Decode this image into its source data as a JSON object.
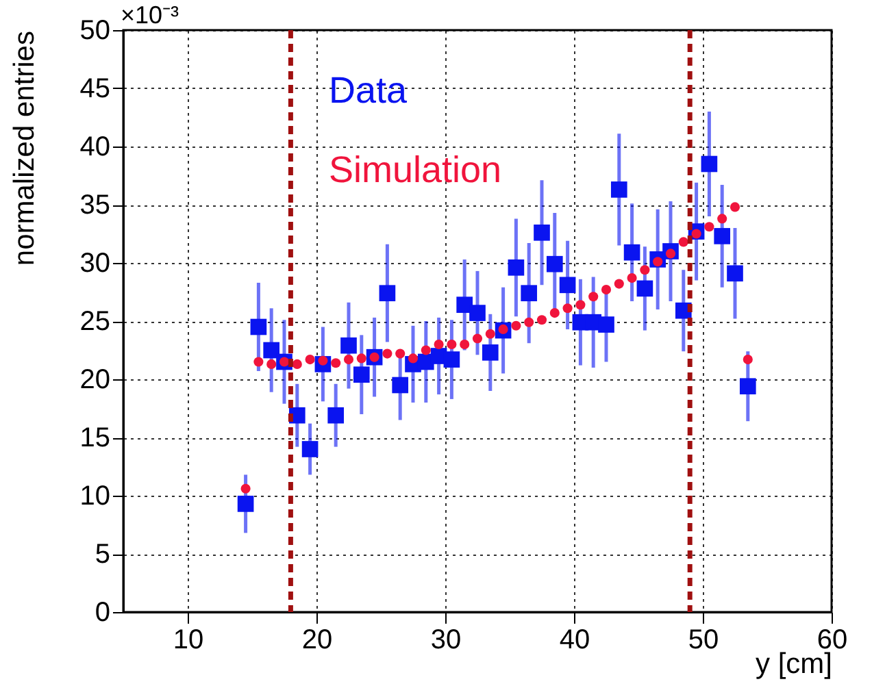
{
  "chart_data": {
    "type": "scatter",
    "xlabel": "y [cm]",
    "ylabel": "normalized entries",
    "annotations": [
      "×10⁻³"
    ],
    "xlim": [
      5,
      60
    ],
    "xticks": [
      10,
      20,
      30,
      40,
      50,
      60
    ],
    "ylim": [
      0,
      50
    ],
    "yticks": [
      0,
      5,
      10,
      15,
      20,
      25,
      30,
      35,
      40,
      45,
      50
    ],
    "grid": true,
    "legend": "top left",
    "x": [
      14.5,
      15.5,
      16.5,
      17.5,
      18.5,
      19.5,
      20.5,
      21.5,
      22.5,
      23.5,
      24.5,
      25.5,
      26.5,
      27.5,
      28.5,
      29.5,
      30.5,
      31.5,
      32.5,
      33.5,
      34.5,
      35.5,
      36.5,
      37.5,
      38.5,
      39.5,
      40.5,
      41.5,
      42.5,
      43.5,
      44.5,
      45.5,
      46.5,
      47.5,
      48.5,
      49.5,
      50.5,
      51.5,
      52.5,
      53.5
    ],
    "series": [
      {
        "name": "Simulation",
        "color": "#f0143c",
        "marker": "circle",
        "values": [
          10.6,
          21.5,
          21.3,
          21.5,
          21.3,
          21.7,
          21.6,
          21.4,
          21.7,
          21.8,
          21.9,
          22.2,
          22.2,
          21.8,
          22.5,
          23.0,
          23.0,
          23.0,
          23.5,
          23.9,
          24.3,
          24.6,
          24.9,
          25.1,
          25.7,
          26.1,
          26.4,
          27.1,
          27.7,
          28.2,
          28.7,
          29.4,
          30.1,
          30.8,
          31.8,
          32.5,
          33.1,
          33.8,
          34.8,
          21.7
        ]
      },
      {
        "name": "Data",
        "color": "#0a14f0",
        "marker": "square",
        "values": [
          9.3,
          24.5,
          22.5,
          21.5,
          16.9,
          14.0,
          21.3,
          16.9,
          22.9,
          20.4,
          21.9,
          27.4,
          19.5,
          21.3,
          21.5,
          22.0,
          21.7,
          26.4,
          25.7,
          22.3,
          24.2,
          29.6,
          27.4,
          32.6,
          29.9,
          28.1,
          24.9,
          24.9,
          24.7,
          36.3,
          30.9,
          27.8,
          30.3,
          31.0,
          25.9,
          32.7,
          38.5,
          32.3,
          29.1,
          19.4
        ],
        "errors": [
          2.5,
          3.8,
          3.6,
          3.6,
          2.7,
          2.2,
          3.2,
          2.7,
          3.7,
          3.4,
          3.4,
          4.2,
          3.0,
          3.3,
          3.5,
          3.3,
          3.4,
          3.9,
          3.6,
          3.3,
          3.7,
          4.2,
          4.3,
          4.5,
          4.4,
          3.8,
          3.7,
          3.9,
          3.2,
          4.8,
          4.2,
          3.6,
          4.3,
          4.3,
          3.5,
          4.2,
          4.5,
          4.4,
          3.9,
          3.0
        ]
      }
    ],
    "ref_lines": [
      {
        "axis": "x",
        "value": 18,
        "color": "#a01010",
        "line_style": "dashed"
      },
      {
        "axis": "x",
        "value": 49,
        "color": "#a01010",
        "line_style": "dashed"
      }
    ]
  }
}
